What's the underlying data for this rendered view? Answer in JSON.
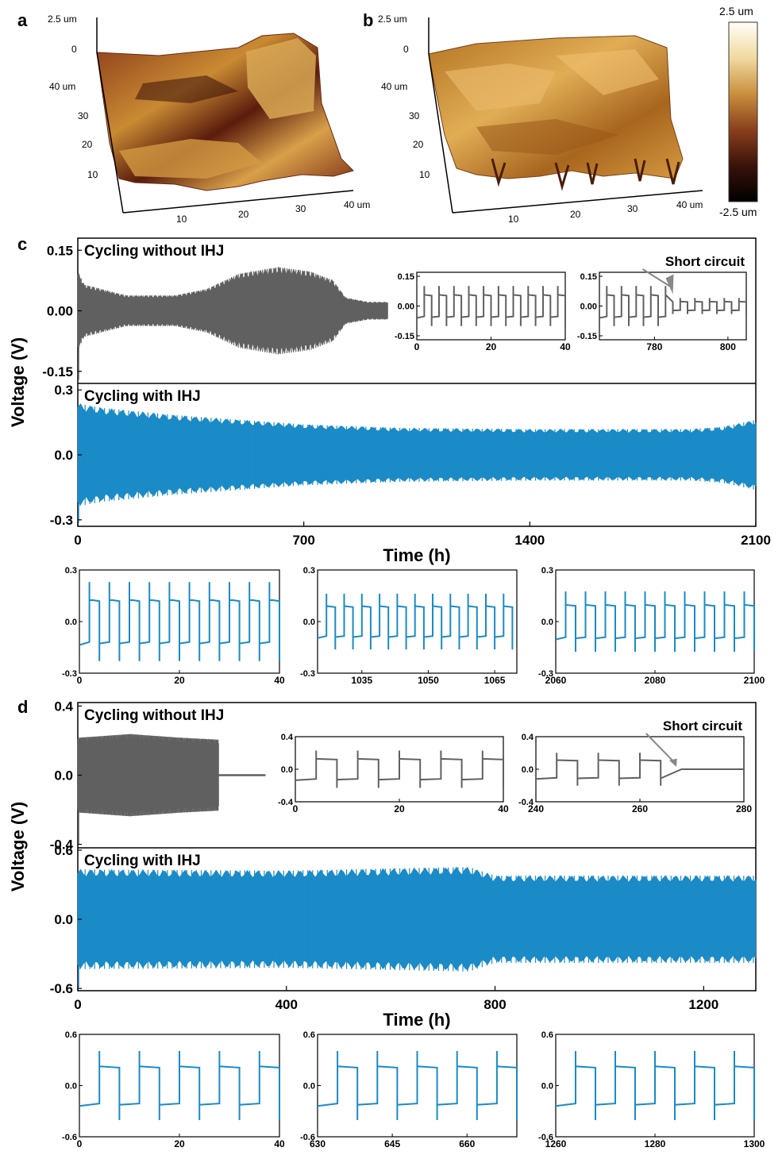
{
  "panel_labels": {
    "a": "a",
    "b": "b",
    "c": "c",
    "d": "d"
  },
  "afm": {
    "z_top": "2.5 um",
    "z_zero": "0",
    "y_ticks": [
      "40 um",
      "30",
      "20",
      "10"
    ],
    "x_ticks": [
      "10",
      "20",
      "30",
      "40 um"
    ],
    "colorbar": {
      "max": "2.5 um",
      "min": "-2.5 um",
      "colors": [
        "#fffef6",
        "#f0d9a0",
        "#c98f3e",
        "#8a3f1c",
        "#3a120a",
        "#000000"
      ]
    }
  },
  "colors": {
    "gray": "#606060",
    "blue": "#1a8bc7"
  },
  "chart_data": [
    {
      "id": "c_main",
      "type": "line",
      "xlabel": "Time (h)",
      "ylabel": "Voltage (V)",
      "xlim": [
        0,
        2100
      ],
      "x_ticks": [
        "0",
        "700",
        "1400",
        "2100"
      ],
      "panels": [
        {
          "title": "Cycling without IHJ",
          "ylim": [
            -0.18,
            0.18
          ],
          "y_ticks": [
            "0.15",
            "0.00",
            "-0.15"
          ],
          "y_tick_values": [
            0.15,
            0,
            -0.15
          ],
          "series": {
            "name": "without IHJ",
            "color": "gray",
            "x_end": 960,
            "envelope": [
              [
                0,
                0.09
              ],
              [
                20,
                0.06
              ],
              [
                150,
                0.035
              ],
              [
                300,
                0.035
              ],
              [
                400,
                0.05
              ],
              [
                500,
                0.085
              ],
              [
                620,
                0.1
              ],
              [
                720,
                0.09
              ],
              [
                790,
                0.07
              ],
              [
                830,
                0.03
              ],
              [
                900,
                0.02
              ],
              [
                960,
                0.02
              ]
            ]
          }
        },
        {
          "title": "Cycling with IHJ",
          "ylim": [
            -0.33,
            0.33
          ],
          "y_ticks": [
            "0.3",
            "0.0",
            "-0.3"
          ],
          "y_tick_values": [
            0.3,
            0,
            -0.3
          ],
          "series": {
            "name": "with IHJ",
            "color": "blue",
            "x_end": 2100,
            "envelope": [
              [
                0,
                0.22
              ],
              [
                80,
                0.2
              ],
              [
                300,
                0.17
              ],
              [
                700,
                0.13
              ],
              [
                1000,
                0.115
              ],
              [
                1400,
                0.11
              ],
              [
                1900,
                0.11
              ],
              [
                2000,
                0.12
              ],
              [
                2100,
                0.15
              ]
            ]
          }
        }
      ]
    },
    {
      "id": "c_insets",
      "type": "line",
      "insets": [
        {
          "id": "c_in1",
          "xlim": [
            0,
            40
          ],
          "x_ticks": [
            "0",
            "20",
            "40"
          ],
          "ylim": [
            -0.17,
            0.17
          ],
          "y_ticks": [
            "0.15",
            "0.00",
            "-0.15"
          ],
          "color": "gray",
          "period": 4,
          "amp": 0.075
        },
        {
          "id": "c_in2",
          "xlim": [
            765,
            805
          ],
          "x_ticks": [
            "780",
            "800"
          ],
          "ylim": [
            -0.17,
            0.17
          ],
          "y_ticks": [
            "0.15",
            "0.00",
            "-0.15"
          ],
          "color": "gray",
          "period": 4,
          "amp": 0.075,
          "annotation": "Short circuit",
          "short_at": 785,
          "amp_after": 0.03
        },
        {
          "id": "c_in3",
          "xlim": [
            0,
            40
          ],
          "x_ticks": [
            "0",
            "20",
            "40"
          ],
          "ylim": [
            -0.3,
            0.3
          ],
          "y_ticks": [
            "0.3",
            "0.0",
            "-0.3"
          ],
          "color": "blue",
          "period": 4,
          "amp": 0.17
        },
        {
          "id": "c_in4",
          "xlim": [
            1025,
            1070
          ],
          "x_ticks": [
            "1035",
            "1050",
            "1065"
          ],
          "ylim": [
            -0.3,
            0.3
          ],
          "y_ticks": [
            "0.3",
            "0.0",
            "-0.3"
          ],
          "color": "blue",
          "period": 4,
          "amp": 0.12
        },
        {
          "id": "c_in5",
          "xlim": [
            2060,
            2100
          ],
          "x_ticks": [
            "2060",
            "2080",
            "2100"
          ],
          "ylim": [
            -0.3,
            0.3
          ],
          "y_ticks": [
            "0.3",
            "0.0",
            "-0.3"
          ],
          "color": "blue",
          "period": 4,
          "amp": 0.13
        }
      ]
    },
    {
      "id": "d_main",
      "type": "line",
      "xlabel": "Time (h)",
      "ylabel": "Voltage (V)",
      "xlim": [
        0,
        1300
      ],
      "x_ticks": [
        "0",
        "400",
        "800",
        "1200"
      ],
      "panels": [
        {
          "title": "Cycling without IHJ",
          "ylim": [
            -0.42,
            0.42
          ],
          "y_ticks": [
            "0.4",
            "0.0",
            "-0.4"
          ],
          "y_tick_values": [
            0.4,
            0,
            -0.4
          ],
          "series": {
            "name": "without IHJ",
            "color": "gray",
            "x_end": 270,
            "tail_end": 360,
            "tail_amp": 0.005,
            "envelope": [
              [
                0,
                0.2
              ],
              [
                100,
                0.22
              ],
              [
                200,
                0.2
              ],
              [
                270,
                0.19
              ]
            ]
          }
        },
        {
          "title": "Cycling with IHJ",
          "ylim": [
            -0.62,
            0.62
          ],
          "y_ticks": [
            "0.6",
            "0.0",
            "-0.6"
          ],
          "y_tick_values": [
            0.6,
            0,
            -0.6
          ],
          "series": {
            "name": "with IHJ",
            "color": "blue",
            "x_end": 1300,
            "envelope": [
              [
                0,
                0.4
              ],
              [
                400,
                0.39
              ],
              [
                750,
                0.42
              ],
              [
                800,
                0.35
              ],
              [
                1300,
                0.35
              ]
            ]
          }
        }
      ]
    },
    {
      "id": "d_insets",
      "type": "line",
      "insets": [
        {
          "id": "d_in1",
          "xlim": [
            0,
            40
          ],
          "x_ticks": [
            "0",
            "20",
            "40"
          ],
          "ylim": [
            -0.4,
            0.4
          ],
          "y_ticks": [
            "0.4",
            "0.0",
            "-0.4"
          ],
          "color": "gray",
          "period": 8,
          "amp": 0.17
        },
        {
          "id": "d_in2",
          "xlim": [
            240,
            280
          ],
          "x_ticks": [
            "240",
            "260",
            "280"
          ],
          "ylim": [
            -0.4,
            0.4
          ],
          "y_ticks": [
            "0.4",
            "0.0",
            "-0.4"
          ],
          "color": "gray",
          "period": 8,
          "amp": 0.15,
          "annotation": "Short circuit",
          "short_at": 267,
          "amp_after": 0.0
        },
        {
          "id": "d_in3",
          "xlim": [
            0,
            40
          ],
          "x_ticks": [
            "0",
            "20",
            "40"
          ],
          "ylim": [
            -0.6,
            0.6
          ],
          "y_ticks": [
            "0.6",
            "0.0",
            "-0.6"
          ],
          "color": "blue",
          "period": 8,
          "amp": 0.3
        },
        {
          "id": "d_in4",
          "xlim": [
            630,
            670
          ],
          "x_ticks": [
            "630",
            "645",
            "660"
          ],
          "ylim": [
            -0.6,
            0.6
          ],
          "y_ticks": [
            "0.6",
            "0.0",
            "-0.6"
          ],
          "color": "blue",
          "period": 8,
          "amp": 0.3
        },
        {
          "id": "d_in5",
          "xlim": [
            1260,
            1300
          ],
          "x_ticks": [
            "1260",
            "1280",
            "1300"
          ],
          "ylim": [
            -0.6,
            0.6
          ],
          "y_ticks": [
            "0.6",
            "0.0",
            "-0.6"
          ],
          "color": "blue",
          "period": 8,
          "amp": 0.3
        }
      ]
    }
  ]
}
